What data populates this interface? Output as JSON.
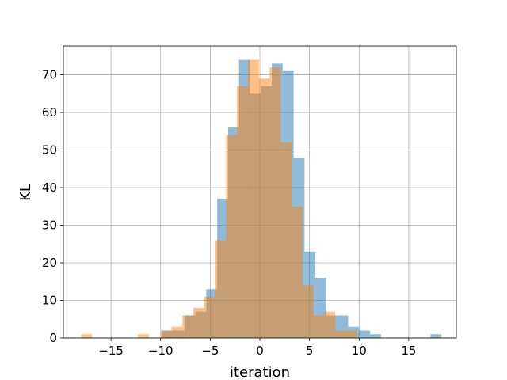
{
  "chart_data": {
    "type": "bar",
    "xlabel": "iteration",
    "ylabel": "KL",
    "xlim": [
      -19.8,
      19.8
    ],
    "ylim": [
      0,
      77.7
    ],
    "xticks": [
      -15,
      -10,
      -5,
      0,
      5,
      10,
      15
    ],
    "xtick_labels": [
      "−15",
      "−10",
      "−5",
      "0",
      "5",
      "10",
      "15"
    ],
    "yticks": [
      0,
      10,
      20,
      30,
      40,
      50,
      60,
      70
    ],
    "ytick_labels": [
      "0",
      "10",
      "20",
      "30",
      "40",
      "50",
      "60",
      "70"
    ],
    "grid": true,
    "series": [
      {
        "color": "#1f77b4",
        "opacity": 0.5,
        "bins": [
          [
            -9.8,
            -8.7,
            2
          ],
          [
            -8.7,
            -7.6,
            2
          ],
          [
            -7.6,
            -6.5,
            6
          ],
          [
            -6.5,
            -5.4,
            7
          ],
          [
            -5.4,
            -4.3,
            13
          ],
          [
            -4.3,
            -3.2,
            37
          ],
          [
            -3.2,
            -2.1,
            56
          ],
          [
            -2.1,
            -1.0,
            74
          ],
          [
            -1.0,
            0.1,
            65
          ],
          [
            0.1,
            1.2,
            67
          ],
          [
            1.2,
            2.3,
            73
          ],
          [
            2.3,
            3.4,
            71
          ],
          [
            3.4,
            4.5,
            48
          ],
          [
            4.5,
            5.6,
            23
          ],
          [
            5.6,
            6.7,
            16
          ],
          [
            6.7,
            7.8,
            6
          ],
          [
            7.8,
            8.9,
            6
          ],
          [
            8.9,
            10.0,
            3
          ],
          [
            10.0,
            11.1,
            2
          ],
          [
            11.1,
            12.2,
            1
          ],
          [
            17.2,
            18.3,
            1
          ]
        ]
      },
      {
        "color": "#ff7f0e",
        "opacity": 0.5,
        "bins": [
          [
            -18.0,
            -16.9,
            1
          ],
          [
            -12.3,
            -11.2,
            1
          ],
          [
            -10.0,
            -8.9,
            2
          ],
          [
            -8.9,
            -7.8,
            3
          ],
          [
            -7.8,
            -6.7,
            6
          ],
          [
            -6.7,
            -5.6,
            8
          ],
          [
            -5.6,
            -4.5,
            11
          ],
          [
            -4.5,
            -3.4,
            26
          ],
          [
            -3.4,
            -2.3,
            54
          ],
          [
            -2.3,
            -1.2,
            67
          ],
          [
            -1.2,
            -0.1,
            74
          ],
          [
            -0.1,
            1.0,
            69
          ],
          [
            1.0,
            2.1,
            72
          ],
          [
            2.1,
            3.2,
            52
          ],
          [
            3.2,
            4.3,
            35
          ],
          [
            4.3,
            5.4,
            14
          ],
          [
            5.4,
            6.5,
            6
          ],
          [
            6.5,
            7.6,
            7
          ],
          [
            7.6,
            8.7,
            2
          ],
          [
            8.7,
            9.8,
            2
          ]
        ]
      }
    ]
  }
}
